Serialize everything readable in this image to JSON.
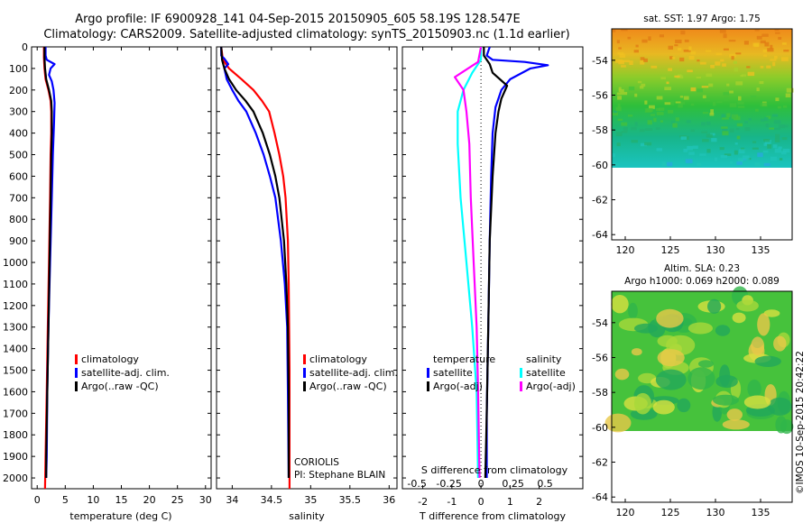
{
  "header": {
    "line1": "Argo profile: IF 6900928_141 04-Sep-2015 20150905_605 58.19S 128.547E",
    "line2": "Climatology: CARS2009. Satellite-adjusted climatology: synTS_20150903.nc (1.1d earlier)"
  },
  "colors": {
    "climatology": "#ff0000",
    "satellite": "#0000ff",
    "argo": "#000000",
    "sal_satellite": "#00ffff",
    "sal_argo": "#ff00ff"
  },
  "depth_axis": {
    "min": 0,
    "max": 2050,
    "ticks": [
      0,
      100,
      200,
      300,
      400,
      500,
      600,
      700,
      800,
      900,
      1000,
      1100,
      1200,
      1300,
      1400,
      1500,
      1600,
      1700,
      1800,
      1900,
      2000
    ]
  },
  "chart_data": [
    {
      "type": "line",
      "id": "temperature",
      "xlabel": "temperature (deg C)",
      "xlim": [
        -1,
        31
      ],
      "xticks": [
        0,
        5,
        10,
        15,
        20,
        25,
        30
      ],
      "ylim": [
        0,
        2050
      ],
      "legend": [
        "climatology",
        "satellite-adj. clim.",
        "Argo(..raw -QC)"
      ],
      "series": [
        {
          "name": "climatology",
          "color": "#ff0000",
          "points": [
            [
              1.2,
              0
            ],
            [
              1.2,
              50
            ],
            [
              1.3,
              100
            ],
            [
              1.5,
              150
            ],
            [
              2.0,
              200
            ],
            [
              2.4,
              250
            ],
            [
              2.5,
              300
            ],
            [
              2.5,
              400
            ],
            [
              2.4,
              500
            ],
            [
              2.3,
              700
            ],
            [
              2.1,
              1000
            ],
            [
              1.9,
              1300
            ],
            [
              1.7,
              1600
            ],
            [
              1.5,
              1900
            ],
            [
              1.4,
              2050
            ]
          ]
        },
        {
          "name": "satellite-adj. clim.",
          "color": "#0000ff",
          "points": [
            [
              1.5,
              0
            ],
            [
              1.5,
              40
            ],
            [
              1.7,
              60
            ],
            [
              3.1,
              80
            ],
            [
              2.4,
              100
            ],
            [
              2.1,
              130
            ],
            [
              2.6,
              160
            ],
            [
              2.9,
              200
            ],
            [
              3.1,
              260
            ],
            [
              3.0,
              350
            ],
            [
              2.8,
              500
            ],
            [
              2.6,
              700
            ],
            [
              2.3,
              1000
            ],
            [
              2.0,
              1300
            ],
            [
              1.8,
              1600
            ],
            [
              1.7,
              1900
            ],
            [
              1.6,
              2000
            ]
          ]
        },
        {
          "name": "Argo(..raw -QC)",
          "color": "#000000",
          "points": [
            [
              1.3,
              0
            ],
            [
              1.3,
              50
            ],
            [
              1.4,
              100
            ],
            [
              1.6,
              150
            ],
            [
              2.1,
              200
            ],
            [
              2.5,
              250
            ],
            [
              2.6,
              300
            ],
            [
              2.6,
              400
            ],
            [
              2.5,
              500
            ],
            [
              2.4,
              700
            ],
            [
              2.2,
              1000
            ],
            [
              2.0,
              1300
            ],
            [
              1.8,
              1600
            ],
            [
              1.6,
              1900
            ],
            [
              1.6,
              2000
            ]
          ]
        }
      ]
    },
    {
      "type": "line",
      "id": "salinity",
      "xlabel": "salinity",
      "xlim": [
        33.8,
        36.1
      ],
      "xticks": [
        34,
        34.5,
        35,
        35.5,
        36
      ],
      "xtick_labels": [
        "34",
        "34.5",
        "35",
        "35.5",
        "36"
      ],
      "ylim": [
        0,
        2050
      ],
      "legend": [
        "climatology",
        "satellite-adj. clim.",
        "Argo(..raw -QC)"
      ],
      "series": [
        {
          "name": "climatology",
          "color": "#ff0000",
          "points": [
            [
              33.86,
              0
            ],
            [
              33.88,
              60
            ],
            [
              33.96,
              100
            ],
            [
              34.12,
              150
            ],
            [
              34.27,
              200
            ],
            [
              34.38,
              250
            ],
            [
              34.47,
              300
            ],
            [
              34.54,
              400
            ],
            [
              34.6,
              500
            ],
            [
              34.65,
              600
            ],
            [
              34.68,
              700
            ],
            [
              34.71,
              900
            ],
            [
              34.72,
              1100
            ],
            [
              34.73,
              1500
            ],
            [
              34.73,
              2050
            ]
          ]
        },
        {
          "name": "satellite-adj. clim.",
          "color": "#0000ff",
          "points": [
            [
              33.86,
              0
            ],
            [
              33.86,
              40
            ],
            [
              33.9,
              55
            ],
            [
              33.95,
              80
            ],
            [
              33.9,
              100
            ],
            [
              33.93,
              150
            ],
            [
              34.0,
              200
            ],
            [
              34.08,
              250
            ],
            [
              34.18,
              300
            ],
            [
              34.3,
              400
            ],
            [
              34.4,
              500
            ],
            [
              34.48,
              600
            ],
            [
              34.55,
              700
            ],
            [
              34.62,
              900
            ],
            [
              34.67,
              1100
            ],
            [
              34.7,
              1300
            ],
            [
              34.71,
              1600
            ],
            [
              34.72,
              2000
            ]
          ]
        },
        {
          "name": "Argo(..raw -QC)",
          "color": "#000000",
          "points": [
            [
              33.86,
              0
            ],
            [
              33.87,
              60
            ],
            [
              33.9,
              100
            ],
            [
              33.96,
              150
            ],
            [
              34.05,
              200
            ],
            [
              34.17,
              250
            ],
            [
              34.27,
              300
            ],
            [
              34.39,
              400
            ],
            [
              34.48,
              500
            ],
            [
              34.55,
              600
            ],
            [
              34.6,
              700
            ],
            [
              34.66,
              900
            ],
            [
              34.69,
              1100
            ],
            [
              34.71,
              1300
            ],
            [
              34.72,
              1600
            ],
            [
              34.72,
              2000
            ]
          ]
        }
      ],
      "annotations": [
        "CORIOLIS",
        "PI: Stephane BLAIN"
      ]
    },
    {
      "type": "line",
      "id": "difference",
      "xlabel": "T difference from climatology",
      "xlabel_top": "S difference from climatology",
      "xlim": [
        -2.7,
        3.5
      ],
      "xticks": [
        -2,
        -1,
        0,
        1,
        2
      ],
      "xticks_s": [
        -0.5,
        -0.25,
        0,
        0.25,
        0.5
      ],
      "xtick_labels_s": [
        "-0.5",
        "-0.25",
        "0",
        "0.25",
        "0.5"
      ],
      "ylim": [
        0,
        2050
      ],
      "legend_headers": [
        "temperature",
        "salinity"
      ],
      "legend": [
        "satellite",
        "Argo(-adj)",
        "satellite",
        "Argo(-adj)"
      ],
      "series": [
        {
          "name": "satellite",
          "group": "temperature",
          "color": "#0000ff",
          "points": [
            [
              0.3,
              0
            ],
            [
              0.2,
              40
            ],
            [
              0.4,
              60
            ],
            [
              1.5,
              70
            ],
            [
              2.3,
              85
            ],
            [
              1.7,
              100
            ],
            [
              1.0,
              150
            ],
            [
              0.7,
              200
            ],
            [
              0.5,
              280
            ],
            [
              0.4,
              400
            ],
            [
              0.35,
              600
            ],
            [
              0.3,
              900
            ],
            [
              0.25,
              1300
            ],
            [
              0.2,
              1700
            ],
            [
              0.2,
              2000
            ]
          ]
        },
        {
          "name": "Argo(-adj)",
          "group": "temperature",
          "color": "#000000",
          "points": [
            [
              0.1,
              0
            ],
            [
              0.1,
              40
            ],
            [
              0.3,
              80
            ],
            [
              0.4,
              120
            ],
            [
              0.9,
              180
            ],
            [
              0.7,
              240
            ],
            [
              0.6,
              300
            ],
            [
              0.5,
              400
            ],
            [
              0.4,
              600
            ],
            [
              0.3,
              900
            ],
            [
              0.25,
              1300
            ],
            [
              0.2,
              1700
            ],
            [
              0.15,
              2000
            ]
          ]
        },
        {
          "name": "satellite",
          "group": "salinity",
          "color": "#00ffff",
          "points": [
            [
              0.0,
              0
            ],
            [
              0.0,
              60
            ],
            [
              -0.3,
              120
            ],
            [
              -0.6,
              200
            ],
            [
              -0.8,
              300
            ],
            [
              -0.8,
              450
            ],
            [
              -0.7,
              700
            ],
            [
              -0.5,
              1000
            ],
            [
              -0.3,
              1300
            ],
            [
              -0.15,
              1600
            ],
            [
              -0.1,
              2000
            ]
          ]
        },
        {
          "name": "Argo(-adj)",
          "group": "salinity",
          "color": "#ff00ff",
          "points": [
            [
              0.0,
              0
            ],
            [
              -0.1,
              70
            ],
            [
              -0.9,
              140
            ],
            [
              -0.6,
              200
            ],
            [
              -0.5,
              300
            ],
            [
              -0.4,
              450
            ],
            [
              -0.35,
              700
            ],
            [
              -0.25,
              1000
            ],
            [
              -0.15,
              1300
            ],
            [
              -0.1,
              1600
            ],
            [
              -0.05,
              2000
            ]
          ]
        }
      ]
    },
    {
      "type": "heatmap",
      "id": "sst-map",
      "title": "sat. SST: 1.97 Argo: 1.75",
      "xticks": [
        120,
        125,
        130,
        135
      ],
      "yticks": [
        -54,
        -56,
        -58,
        -60,
        -62,
        -64
      ],
      "xlim": [
        118.5,
        138.5
      ],
      "ylim": [
        -64.3,
        -52.2
      ]
    },
    {
      "type": "heatmap",
      "id": "sla-map",
      "title_line1": "Altim. SLA: 0.23",
      "title_line2": "Argo h1000: 0.069 h2000: 0.089",
      "xticks": [
        120,
        125,
        130,
        135
      ],
      "yticks": [
        -54,
        -56,
        -58,
        -60,
        -62,
        -64
      ],
      "xlim": [
        118.5,
        138.5
      ],
      "ylim": [
        -64.3,
        -52.2
      ]
    }
  ],
  "footer": {
    "stamp": "©IMOS 10-Sep-2015 20:42:22"
  }
}
